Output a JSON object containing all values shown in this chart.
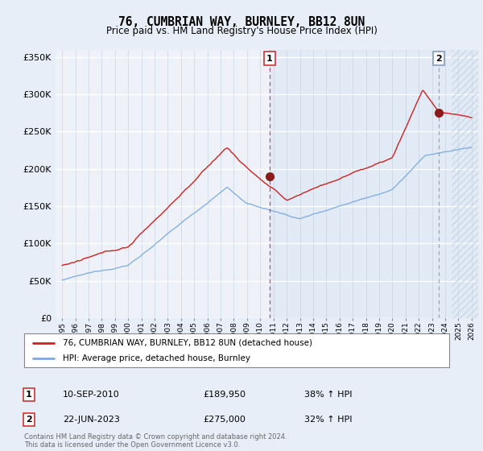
{
  "title": "76, CUMBRIAN WAY, BURNLEY, BB12 8UN",
  "subtitle": "Price paid vs. HM Land Registry's House Price Index (HPI)",
  "legend_line1": "76, CUMBRIAN WAY, BURNLEY, BB12 8UN (detached house)",
  "legend_line2": "HPI: Average price, detached house, Burnley",
  "footnote": "Contains HM Land Registry data © Crown copyright and database right 2024.\nThis data is licensed under the Open Government Licence v3.0.",
  "sale1_date": "10-SEP-2010",
  "sale1_price": "£189,950",
  "sale1_pct": "38% ↑ HPI",
  "sale2_date": "22-JUN-2023",
  "sale2_price": "£275,000",
  "sale2_pct": "32% ↑ HPI",
  "sale1_t": 2010.7,
  "sale2_t": 2023.5,
  "sale1_val": 189950,
  "sale2_val": 275000,
  "hpi_color": "#7aaadd",
  "price_color": "#cc2222",
  "vline1_color": "#cc3333",
  "vline2_color": "#8899bb",
  "bg_color": "#e8eef8",
  "plot_bg": "#eef2f8",
  "shade_color": "#dde8f5",
  "hatch_color": "#c8d8e8"
}
